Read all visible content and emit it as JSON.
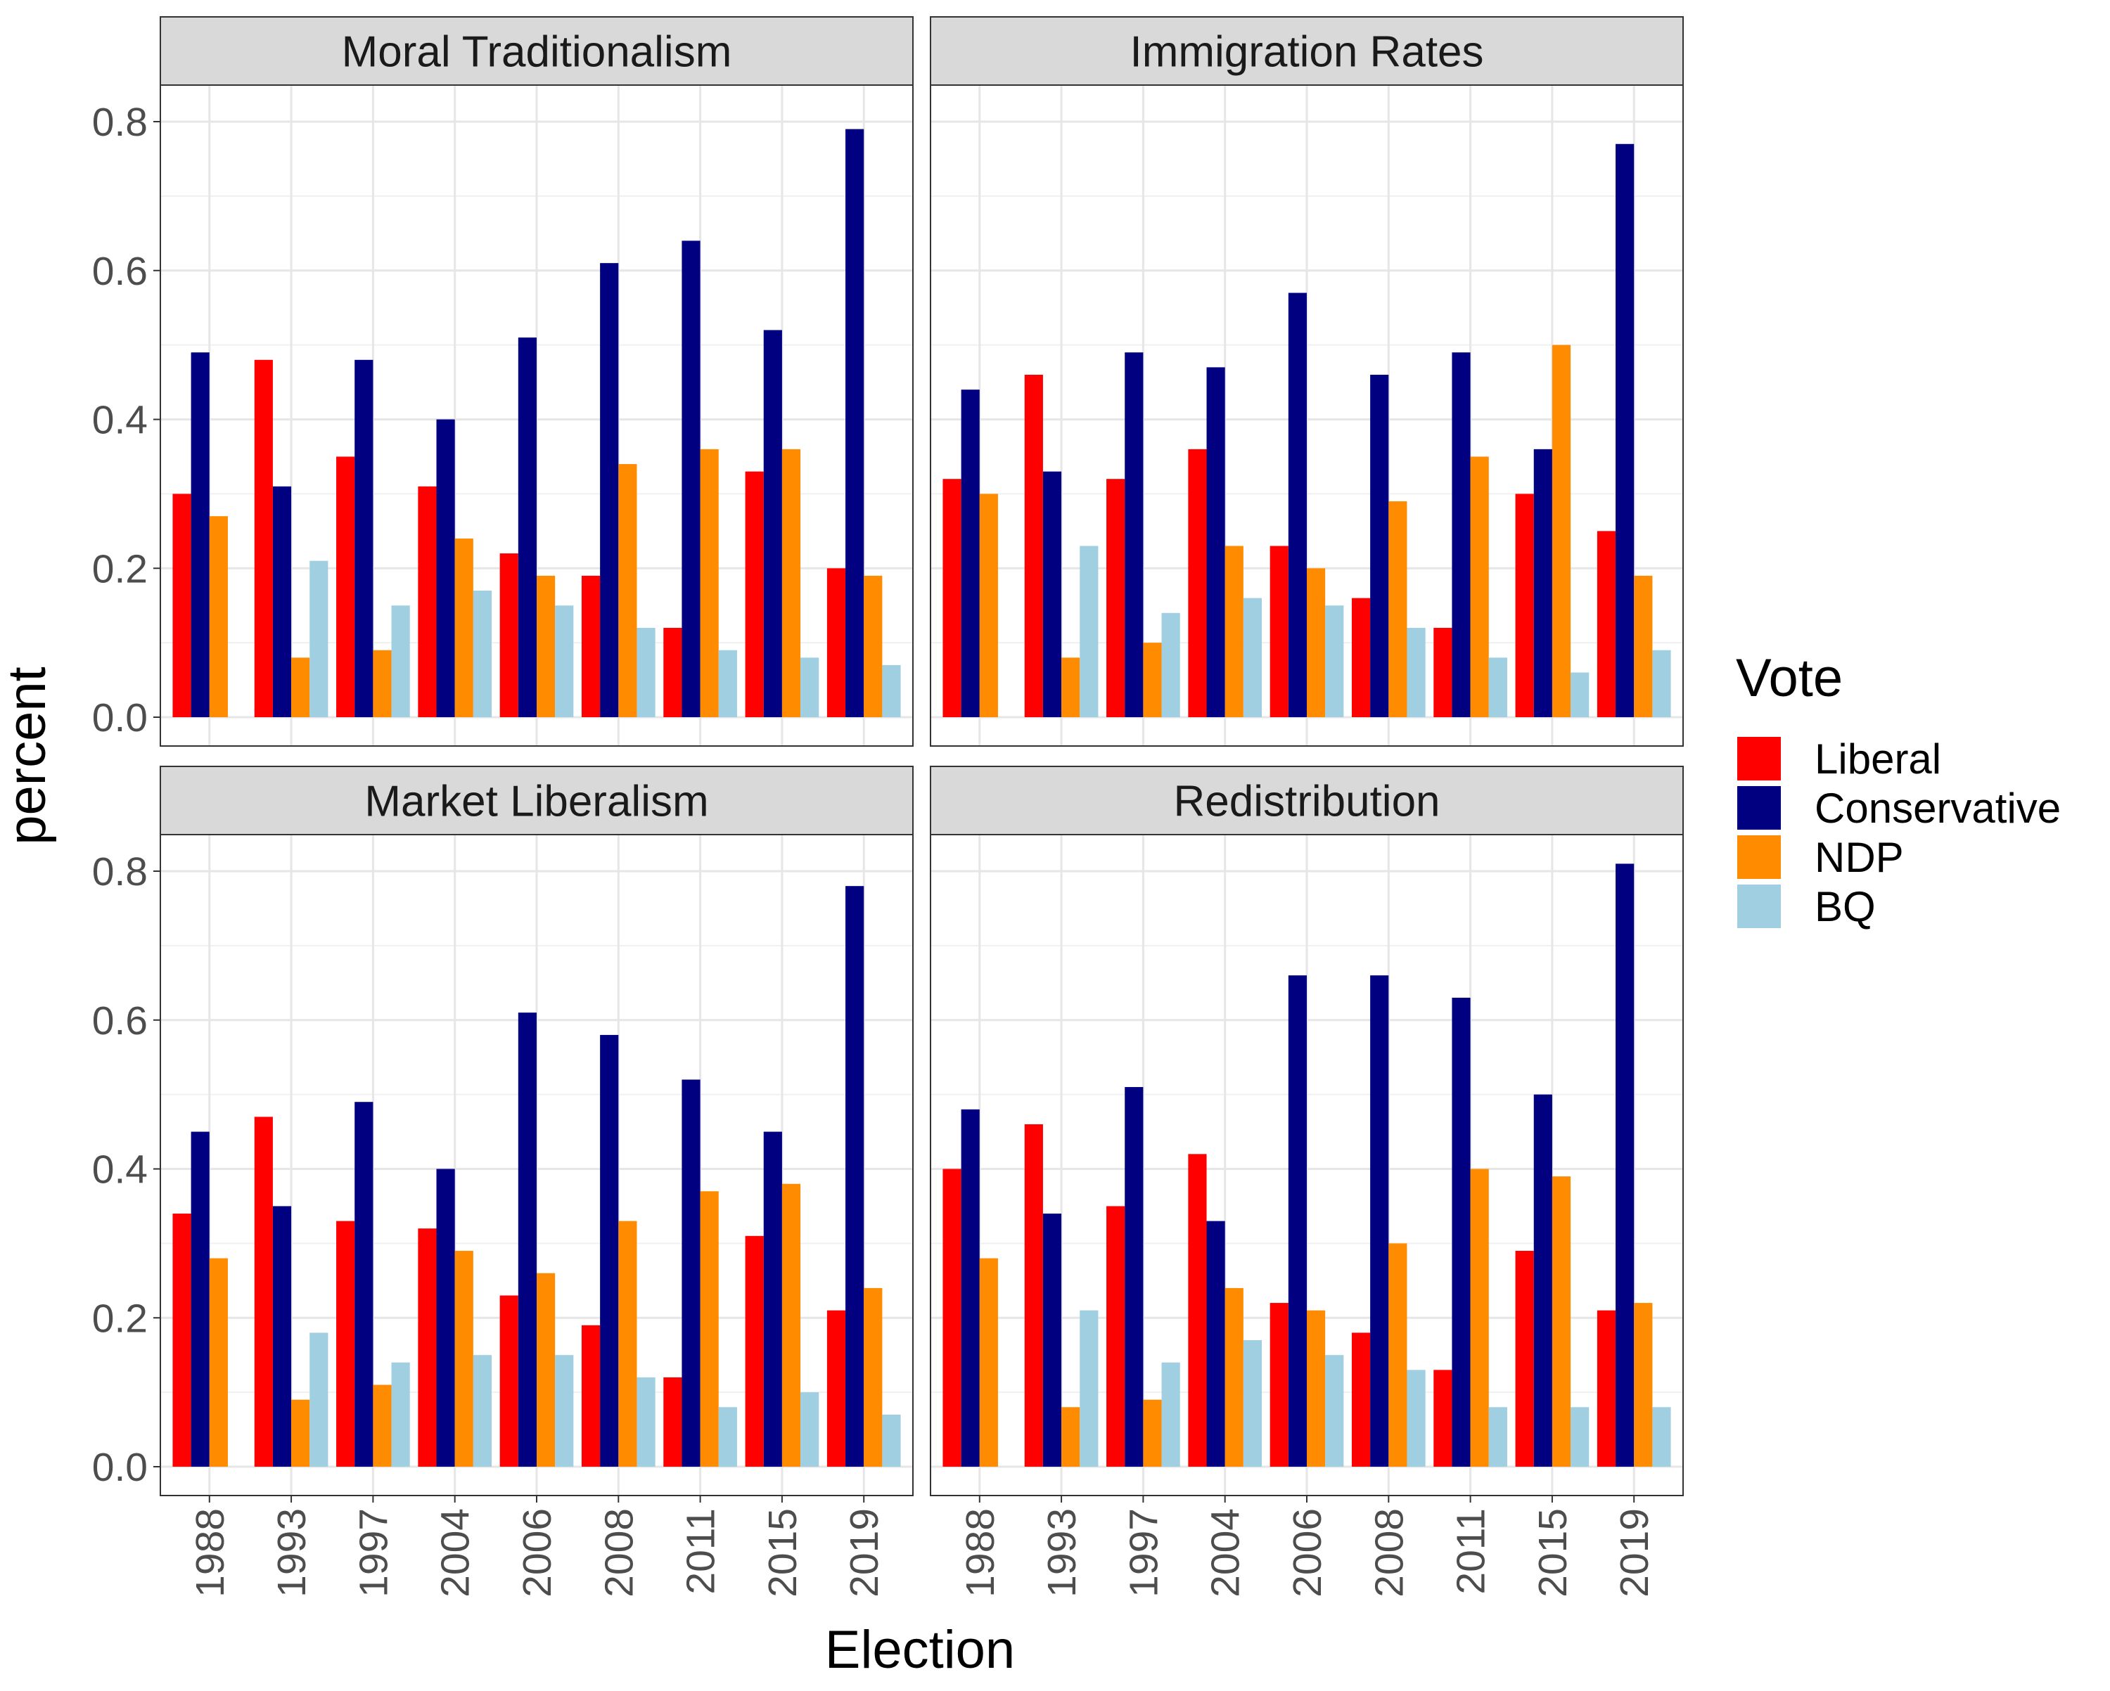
{
  "chart_data": {
    "type": "bar",
    "xlabel": "Election",
    "ylabel": "percent",
    "ylim": [
      0,
      0.85
    ],
    "yticks": [
      "0.0",
      "0.2",
      "0.4",
      "0.6",
      "0.8"
    ],
    "categories": [
      "1988",
      "1993",
      "1997",
      "2004",
      "2006",
      "2008",
      "2011",
      "2015",
      "2019"
    ],
    "legend": {
      "title": "Vote",
      "position": "right",
      "items": [
        {
          "name": "Liberal",
          "color": "#ff0000"
        },
        {
          "name": "Conservative",
          "color": "#000080"
        },
        {
          "name": "NDP",
          "color": "#ff8c00"
        },
        {
          "name": "BQ",
          "color": "#9fcfe0"
        }
      ]
    },
    "grid": true,
    "panels": [
      {
        "title": "Moral Traditionalism",
        "series": [
          {
            "name": "Liberal",
            "values": [
              0.3,
              0.48,
              0.35,
              0.31,
              0.22,
              0.19,
              0.12,
              0.33,
              0.2
            ]
          },
          {
            "name": "Conservative",
            "values": [
              0.49,
              0.31,
              0.48,
              0.4,
              0.51,
              0.61,
              0.64,
              0.52,
              0.79
            ]
          },
          {
            "name": "NDP",
            "values": [
              0.27,
              0.08,
              0.09,
              0.24,
              0.19,
              0.34,
              0.36,
              0.36,
              0.19
            ]
          },
          {
            "name": "BQ",
            "values": [
              null,
              0.21,
              0.15,
              0.17,
              0.15,
              0.12,
              0.09,
              0.08,
              0.07
            ]
          }
        ]
      },
      {
        "title": "Immigration Rates",
        "series": [
          {
            "name": "Liberal",
            "values": [
              0.32,
              0.46,
              0.32,
              0.36,
              0.23,
              0.16,
              0.12,
              0.3,
              0.25
            ]
          },
          {
            "name": "Conservative",
            "values": [
              0.44,
              0.33,
              0.49,
              0.47,
              0.57,
              0.46,
              0.49,
              0.36,
              0.77
            ]
          },
          {
            "name": "NDP",
            "values": [
              0.3,
              0.08,
              0.1,
              0.23,
              0.2,
              0.29,
              0.35,
              0.5,
              0.19
            ]
          },
          {
            "name": "BQ",
            "values": [
              null,
              0.23,
              0.14,
              0.16,
              0.15,
              0.12,
              0.08,
              0.06,
              0.09
            ]
          }
        ]
      },
      {
        "title": "Market Liberalism",
        "series": [
          {
            "name": "Liberal",
            "values": [
              0.34,
              0.47,
              0.33,
              0.32,
              0.23,
              0.19,
              0.12,
              0.31,
              0.21
            ]
          },
          {
            "name": "Conservative",
            "values": [
              0.45,
              0.35,
              0.49,
              0.4,
              0.61,
              0.58,
              0.52,
              0.45,
              0.78
            ]
          },
          {
            "name": "NDP",
            "values": [
              0.28,
              0.09,
              0.11,
              0.29,
              0.26,
              0.33,
              0.37,
              0.38,
              0.24
            ]
          },
          {
            "name": "BQ",
            "values": [
              null,
              0.18,
              0.14,
              0.15,
              0.15,
              0.12,
              0.08,
              0.1,
              0.07
            ]
          }
        ]
      },
      {
        "title": "Redistribution",
        "series": [
          {
            "name": "Liberal",
            "values": [
              0.4,
              0.46,
              0.35,
              0.42,
              0.22,
              0.18,
              0.13,
              0.29,
              0.21
            ]
          },
          {
            "name": "Conservative",
            "values": [
              0.48,
              0.34,
              0.51,
              0.33,
              0.66,
              0.66,
              0.63,
              0.5,
              0.81
            ]
          },
          {
            "name": "NDP",
            "values": [
              0.28,
              0.08,
              0.09,
              0.24,
              0.21,
              0.3,
              0.4,
              0.39,
              0.22
            ]
          },
          {
            "name": "BQ",
            "values": [
              null,
              0.21,
              0.14,
              0.17,
              0.15,
              0.13,
              0.08,
              0.08,
              0.08
            ]
          }
        ]
      }
    ]
  }
}
